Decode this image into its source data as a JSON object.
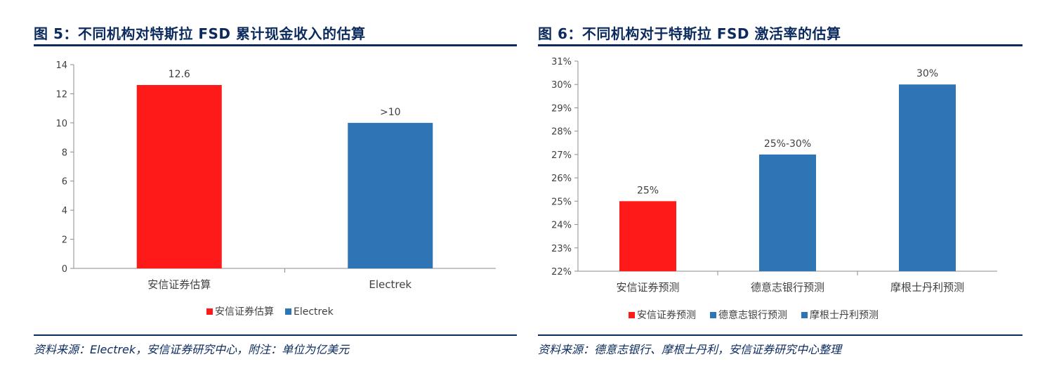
{
  "panels": [
    {
      "title": "图 5：不同机构对特斯拉 FSD 累计现金收入的估算",
      "source": "资料来源：Electrek，安信证券研究中心，附注：单位为亿美元",
      "legend": [
        {
          "label": "安信证券估算",
          "color": "#ff1a1a"
        },
        {
          "label": "Electrek",
          "color": "#2e75b6"
        }
      ]
    },
    {
      "title": "图 6：不同机构对于特斯拉 FSD 激活率的估算",
      "source": "资料来源：德意志银行、摩根士丹利，安信证券研究中心整理",
      "legend": [
        {
          "label": "安信证券预测",
          "color": "#ff1a1a"
        },
        {
          "label": "德意志银行预测",
          "color": "#2e75b6"
        },
        {
          "label": "摩根士丹利预测",
          "color": "#2e75b6"
        }
      ]
    }
  ],
  "chart_data": [
    {
      "type": "bar",
      "categories": [
        "安信证券估算",
        "Electrek"
      ],
      "values": [
        12.6,
        10
      ],
      "data_labels": [
        "12.6",
        ">10"
      ],
      "colors": [
        "#ff1a1a",
        "#2e75b6"
      ],
      "ylim": [
        0,
        14
      ],
      "yticks": [
        0,
        2,
        4,
        6,
        8,
        10,
        12,
        14
      ],
      "ytick_labels": [
        "0",
        "2",
        "4",
        "6",
        "8",
        "10",
        "12",
        "14"
      ],
      "grid": false,
      "legend_position": "bottom"
    },
    {
      "type": "bar",
      "categories": [
        "安信证券预测",
        "德意志银行预测",
        "摩根士丹利预测"
      ],
      "values": [
        25,
        27,
        30
      ],
      "data_labels": [
        "25%",
        "25%-30%",
        "30%"
      ],
      "colors": [
        "#ff1a1a",
        "#2e75b6",
        "#2e75b6"
      ],
      "ylim": [
        22,
        31
      ],
      "yticks": [
        22,
        23,
        24,
        25,
        26,
        27,
        28,
        29,
        30,
        31
      ],
      "ytick_labels": [
        "22%",
        "23%",
        "24%",
        "25%",
        "26%",
        "27%",
        "28%",
        "29%",
        "30%",
        "31%"
      ],
      "grid": false,
      "legend_position": "bottom"
    }
  ]
}
